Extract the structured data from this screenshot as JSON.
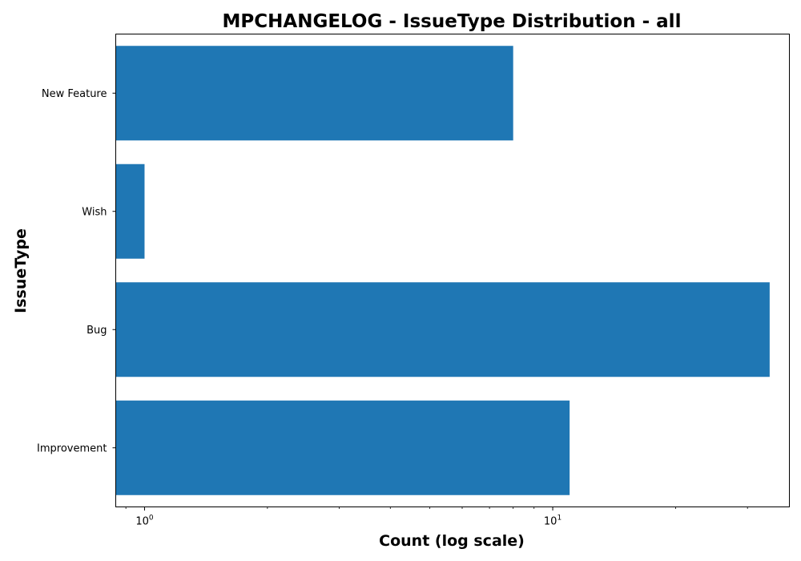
{
  "chart_data": {
    "type": "bar",
    "orientation": "horizontal",
    "title": "MPCHANGELOG - IssueType Distribution - all",
    "xlabel": "Count (log scale)",
    "ylabel": "IssueType",
    "x_scale": "log",
    "xlim": [
      0.85,
      38
    ],
    "categories": [
      "New Feature",
      "Wish",
      "Bug",
      "Improvement"
    ],
    "values": [
      8,
      1,
      34,
      11
    ],
    "x_ticks": [
      {
        "value": 1,
        "base": "10",
        "exp": "0"
      },
      {
        "value": 10,
        "base": "10",
        "exp": "1"
      }
    ],
    "bar_color": "#1f77b4",
    "grid": false,
    "legend": "none"
  }
}
